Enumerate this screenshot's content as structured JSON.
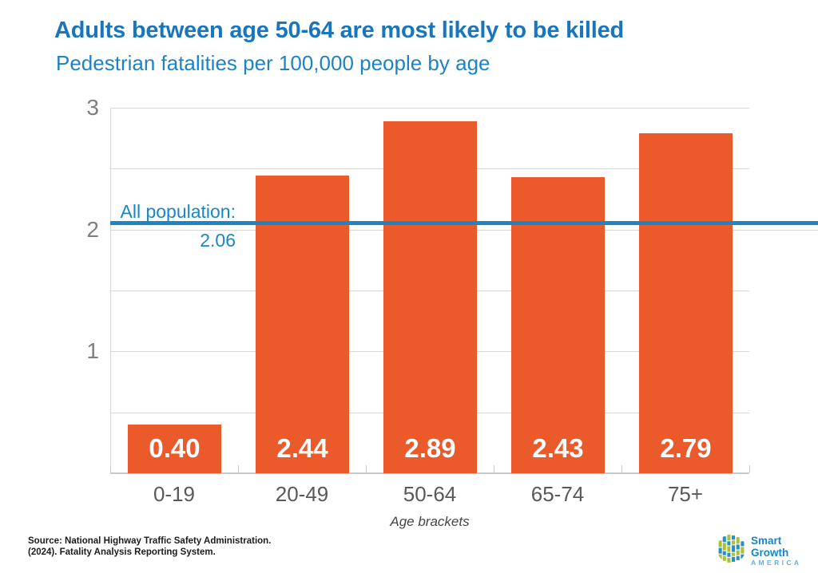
{
  "page": {
    "title": "Adults between age 50-64 are most likely to be killed",
    "subtitle": "Pedestrian fatalities per 100,000 people by age"
  },
  "chart_data": {
    "type": "bar",
    "title": "Adults between age 50-64 are most likely to be killed",
    "subtitle": "Pedestrian fatalities per 100,000 people by age",
    "categories": [
      "0-19",
      "20-49",
      "50-64",
      "65-74",
      "75+"
    ],
    "values": [
      0.4,
      2.44,
      2.89,
      2.43,
      2.79
    ],
    "value_labels": [
      "0.40",
      "2.44",
      "2.89",
      "2.43",
      "2.79"
    ],
    "xlabel": "Age brackets",
    "ylabel": "",
    "ylim": [
      0,
      3
    ],
    "yticks": [
      1,
      2,
      3
    ],
    "gridline_step": 0.5,
    "grid": true,
    "legend": "none",
    "bar_color": "#ea5a2b",
    "reference_line": {
      "label": "All population:",
      "value_label": "2.06",
      "value": 2.06,
      "color": "#1d84c5"
    }
  },
  "footer": {
    "source_line1": "Source: National Highway Traffic Safety Administration.",
    "source_line2": "(2024). Fatality Analysis Reporting System.",
    "logo": {
      "name": "Smart Growth America",
      "line1": "Smart Growth",
      "line2": "AMERICA"
    }
  },
  "colors": {
    "title_blue": "#1a76bc",
    "subtitle_blue": "#1e83c6",
    "bar_orange": "#ea5a2b",
    "reference_blue": "#1d84c5",
    "gridline_gray": "#d8d8d8",
    "axis_label_gray": "#58595b"
  }
}
